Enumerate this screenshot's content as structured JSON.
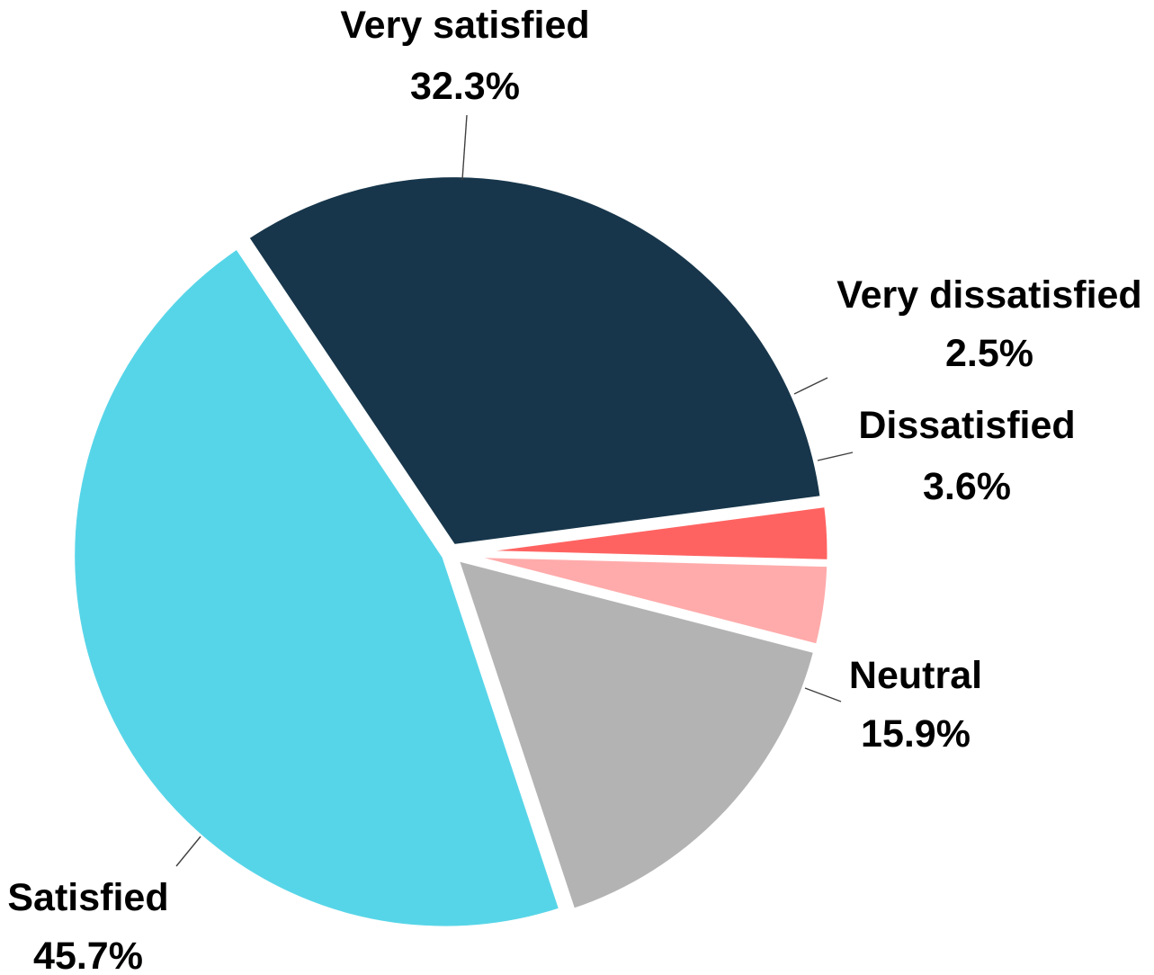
{
  "chart_data": {
    "type": "pie",
    "title": "",
    "slices": [
      {
        "label": "Very satisfied",
        "value": 32.3,
        "display": "32.3%",
        "color": "#17364b"
      },
      {
        "label": "Very dissatisfied",
        "value": 2.5,
        "display": "2.5%",
        "color": "#ff6361"
      },
      {
        "label": "Dissatisfied",
        "value": 3.6,
        "display": "3.6%",
        "color": "#ffabab"
      },
      {
        "label": "Neutral",
        "value": 15.9,
        "display": "15.9%",
        "color": "#b3b3b3"
      },
      {
        "label": "Satisfied",
        "value": 45.7,
        "display": "45.7%",
        "color": "#57d5e8"
      }
    ],
    "legend": "none",
    "data_labels": "outside with leader lines"
  }
}
